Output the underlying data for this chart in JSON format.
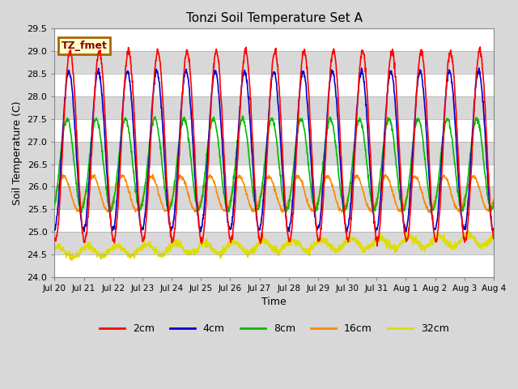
{
  "title": "Tonzi Soil Temperature Set A",
  "xlabel": "Time",
  "ylabel": "Soil Temperature (C)",
  "ylim": [
    24.0,
    29.5
  ],
  "yticks": [
    24.0,
    24.5,
    25.0,
    25.5,
    26.0,
    26.5,
    27.0,
    27.5,
    28.0,
    28.5,
    29.0,
    29.5
  ],
  "annotation_text": "TZ_fmet",
  "annotation_bg": "#ffffcc",
  "annotation_border": "#aa6600",
  "background_color": "#d8d8d8",
  "plot_bg": "#d8d8d8",
  "line_colors": {
    "2cm": "#ff0000",
    "4cm": "#0000cc",
    "8cm": "#00bb00",
    "16cm": "#ff8800",
    "32cm": "#dddd00"
  },
  "line_widths": {
    "2cm": 1.2,
    "4cm": 1.2,
    "8cm": 1.2,
    "16cm": 1.2,
    "32cm": 1.2
  },
  "x_tick_labels": [
    "Jul 20",
    "Jul 21",
    "Jul 22",
    "Jul 23",
    "Jul 24",
    "Jul 25",
    "Jul 26",
    "Jul 27",
    "Jul 28",
    "Jul 29",
    "Jul 30",
    "Jul 31",
    "Aug 1",
    "Aug 2",
    "Aug 3",
    "Aug 4"
  ],
  "n_points": 1500,
  "start_day": 0,
  "end_day": 15,
  "period": 1.0,
  "amp_2cm": 2.1,
  "amp_4cm": 1.75,
  "amp_8cm": 1.0,
  "amp_16cm": 0.38,
  "amp_32cm": 0.12,
  "phase_2cm": 0.0,
  "phase_4cm": 0.22,
  "phase_8cm": 0.65,
  "phase_16cm": 1.35,
  "phase_32cm": 2.5,
  "mean_2cm": 26.9,
  "mean_4cm": 26.8,
  "mean_8cm": 26.5,
  "mean_16cm": 25.85,
  "mean_32cm": 24.55,
  "trend_32cm": 0.018,
  "noise_2cm": 0.04,
  "noise_4cm": 0.03,
  "noise_8cm": 0.03,
  "noise_16cm": 0.02,
  "noise_32cm": 0.04
}
